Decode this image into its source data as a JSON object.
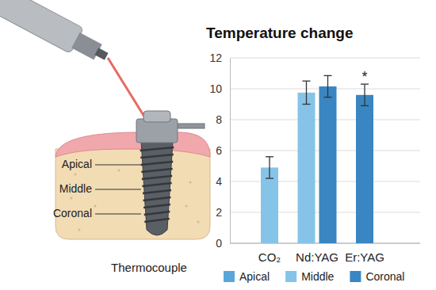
{
  "chart_data": {
    "type": "bar",
    "title": "Temperature change",
    "categories": [
      "CO₂",
      "Nd:YAG",
      "Er:YAG"
    ],
    "series": [
      {
        "name": "Apical",
        "color": "#5aa6d8",
        "values": [
          null,
          null,
          null
        ],
        "errors": [
          null,
          null,
          null
        ]
      },
      {
        "name": "Middle",
        "color": "#86c3e8",
        "values": [
          4.9,
          9.75,
          null
        ],
        "errors": [
          0.7,
          0.75,
          null
        ]
      },
      {
        "name": "Coronal",
        "color": "#3a86c2",
        "values": [
          null,
          10.15,
          9.6
        ],
        "errors": [
          null,
          0.7,
          0.7
        ]
      }
    ],
    "ylim": [
      0,
      12
    ],
    "yticks": [
      0,
      2,
      4,
      6,
      8,
      10,
      12
    ],
    "grid": true,
    "legend": "bottom",
    "annotations": [
      {
        "text": "*",
        "category": "Er:YAG",
        "series": "Coronal"
      }
    ]
  },
  "diagram": {
    "labels": [
      "Apical",
      "Middle",
      "Coronal"
    ],
    "caption": "Thermocouple"
  }
}
